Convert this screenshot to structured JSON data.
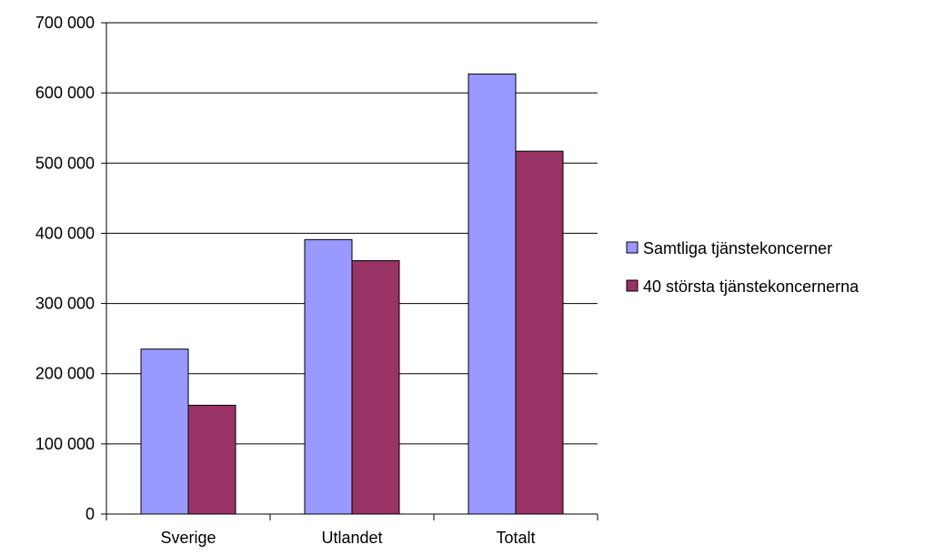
{
  "chart_data": {
    "type": "bar",
    "categories": [
      "Sverige",
      "Utlandet",
      "Totalt"
    ],
    "series": [
      {
        "name": "Samtliga tjänstekoncerner",
        "values": [
          235000,
          391000,
          627000
        ],
        "color": "#9999ff"
      },
      {
        "name": "40 största tjänstekoncernerna",
        "values": [
          155000,
          361000,
          517000
        ],
        "color": "#993366"
      }
    ],
    "ylim": [
      0,
      700000
    ],
    "yticks": [
      0,
      100000,
      200000,
      300000,
      400000,
      500000,
      600000,
      700000
    ],
    "ytick_labels": [
      "0",
      "100 000",
      "200 000",
      "300 000",
      "400 000",
      "500 000",
      "600 000",
      "700 000"
    ],
    "grid": true,
    "legend": "right",
    "title": "",
    "xlabel": "",
    "ylabel": ""
  }
}
